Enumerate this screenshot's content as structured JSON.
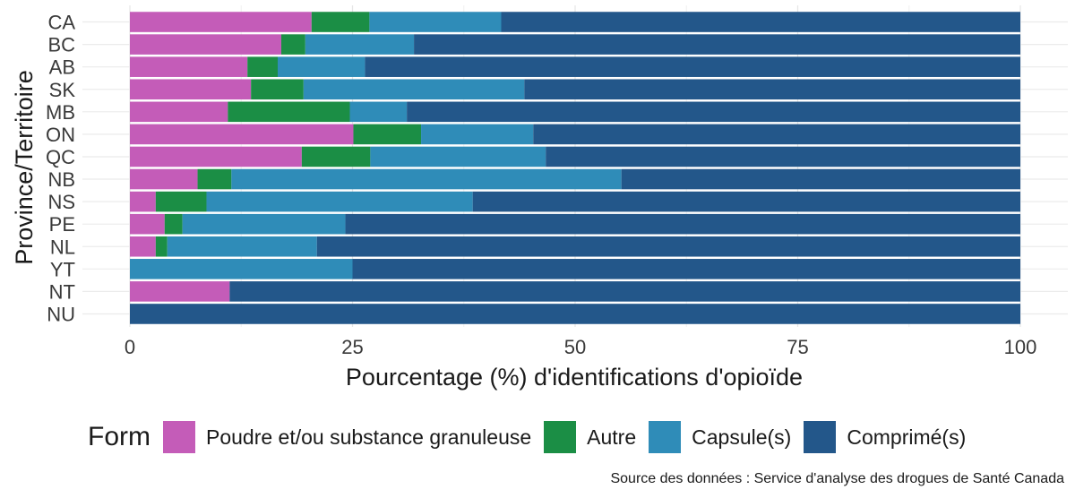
{
  "chart_data": {
    "type": "bar",
    "orientation": "horizontal",
    "stacked": true,
    "xlabel": "Pourcentage (%) d'identifications d'opioïde",
    "ylabel": "Province/Territoire",
    "xlim": [
      0,
      100
    ],
    "x_ticks": [
      "0",
      "25",
      "50",
      "75",
      "100"
    ],
    "grid": true,
    "categories": [
      "CA",
      "BC",
      "AB",
      "SK",
      "MB",
      "ON",
      "QC",
      "NB",
      "NS",
      "PE",
      "NL",
      "YT",
      "NT",
      "NU"
    ],
    "series": [
      {
        "name": "Poudre et/ou substance granuleuse",
        "color": "#c45cb8",
        "values": [
          20.4,
          17.0,
          13.2,
          13.6,
          11.0,
          25.1,
          19.3,
          7.6,
          2.9,
          3.9,
          2.9,
          0,
          11.2,
          0
        ]
      },
      {
        "name": "Autre",
        "color": "#1b8e45",
        "values": [
          6.5,
          2.7,
          3.4,
          5.9,
          13.7,
          7.6,
          7.7,
          3.8,
          5.7,
          2.0,
          1.3,
          0,
          0,
          0
        ]
      },
      {
        "name": "Capsule(s)",
        "color": "#2f8cb8",
        "values": [
          14.8,
          12.2,
          9.8,
          24.8,
          6.4,
          12.6,
          19.7,
          43.8,
          29.9,
          18.3,
          16.8,
          25.0,
          0,
          0
        ]
      },
      {
        "name": "Comprimé(s)",
        "color": "#23578a",
        "values": [
          58.3,
          68.1,
          73.6,
          55.7,
          68.9,
          54.7,
          53.3,
          44.8,
          61.5,
          75.8,
          79.0,
          75.0,
          88.8,
          100
        ]
      }
    ]
  },
  "legend": {
    "title": "Form",
    "items": [
      {
        "label": "Poudre et/ou substance granuleuse",
        "color": "#c45cb8"
      },
      {
        "label": "Autre",
        "color": "#1b8e45"
      },
      {
        "label": "Capsule(s)",
        "color": "#2f8cb8"
      },
      {
        "label": "Comprimé(s)",
        "color": "#23578a"
      }
    ]
  },
  "source": "Source des données : Service d'analyse des drogues de Santé Canada"
}
